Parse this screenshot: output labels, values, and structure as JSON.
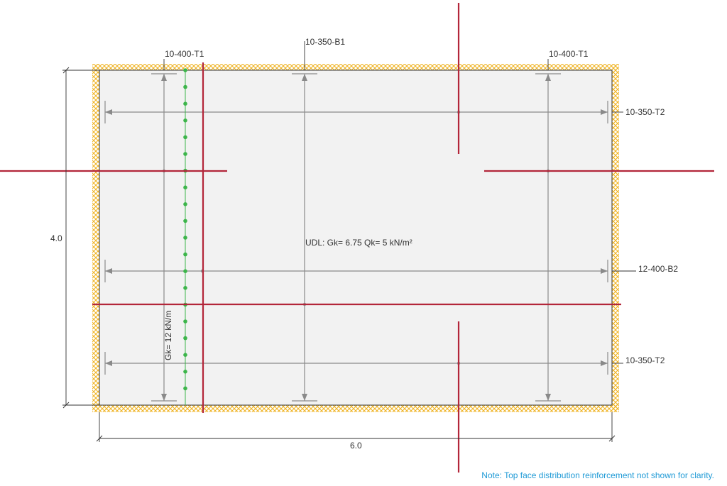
{
  "drawing": {
    "labels": {
      "t1_left": "10-400-T1",
      "b1": "10-350-B1",
      "t1_right": "10-400-T1",
      "t2_top": "10-350-T2",
      "b2": "12-400-B2",
      "t2_bottom": "10-350-T2",
      "udl": "UDL: Gk= 6.75 Qk= 5 kN/m²",
      "line_load": "Gk= 12 kN/m"
    },
    "dimensions": {
      "height": "4.0",
      "width": "6.0"
    },
    "note": "Note: Top face distribution reinforcement not shown for clarity.",
    "colors": {
      "slab_fill": "#f2f2f2",
      "support_hatch": "#f0b323",
      "section_cut": "#b3263a",
      "line_load": "#3cb54a",
      "rebar": "#8a8a8a",
      "note": "#1f9ad6"
    }
  }
}
